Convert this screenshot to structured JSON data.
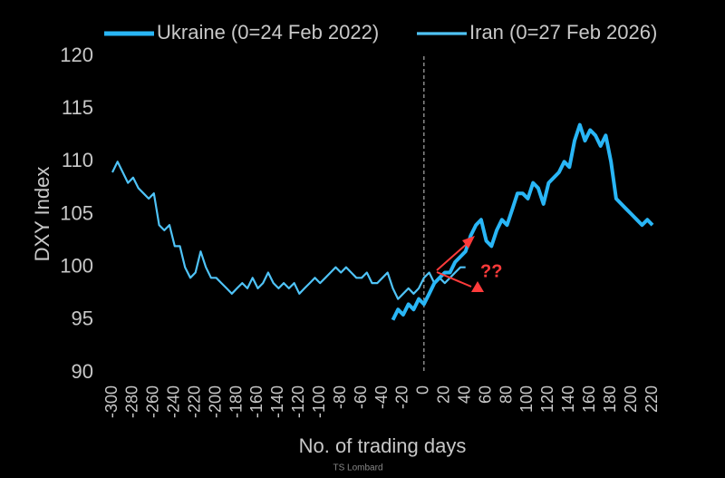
{
  "chart_data": {
    "type": "line",
    "xlabel": "No. of trading days",
    "ylabel": "DXY Index",
    "source": "TS Lombard",
    "annotation": "??",
    "vline": 0,
    "xlim": [
      -300,
      220
    ],
    "xticks": [
      -300,
      -280,
      -260,
      -240,
      -220,
      -200,
      -180,
      -160,
      -140,
      -120,
      -100,
      -80,
      -60,
      -40,
      -20,
      0,
      20,
      40,
      60,
      80,
      100,
      120,
      140,
      160,
      180,
      200,
      220
    ],
    "ylim": [
      90,
      120
    ],
    "yticks": [
      90,
      95,
      100,
      105,
      110,
      115,
      120
    ],
    "series": [
      {
        "name": "Ukraine (0=24 Feb 2022)",
        "color": "#29b6f6",
        "x": [
          -30,
          -25,
          -20,
          -15,
          -10,
          -5,
          0,
          5,
          10,
          15,
          20,
          25,
          30,
          35,
          40,
          45,
          50,
          55,
          60,
          65,
          70,
          75,
          80,
          85,
          90,
          95,
          100,
          105,
          110,
          115,
          120,
          125,
          130,
          135,
          140,
          145,
          150,
          155,
          160,
          165,
          170,
          175,
          180,
          185,
          190,
          195,
          200,
          205,
          210,
          215,
          220
        ],
        "values": [
          95,
          96,
          95.5,
          96.5,
          96,
          97,
          96.5,
          97.5,
          98.5,
          99,
          99.5,
          99.5,
          100.5,
          101,
          101.5,
          103,
          104,
          104.5,
          102.5,
          102,
          103.5,
          104.5,
          104,
          105.5,
          107,
          107,
          106.5,
          108,
          107.5,
          106,
          108,
          108.5,
          109,
          110,
          109.5,
          112,
          113.5,
          112,
          113,
          112.5,
          111.5,
          112.5,
          110,
          106.5,
          106,
          105.5,
          105,
          104.5,
          104,
          104.5,
          104
        ]
      },
      {
        "name": "Iran (0=27 Feb 2026)",
        "color": "#4fc3f7",
        "x": [
          -300,
          -295,
          -290,
          -285,
          -280,
          -275,
          -270,
          -265,
          -260,
          -255,
          -250,
          -245,
          -240,
          -235,
          -230,
          -225,
          -220,
          -215,
          -210,
          -205,
          -200,
          -195,
          -190,
          -185,
          -180,
          -175,
          -170,
          -165,
          -160,
          -155,
          -150,
          -145,
          -140,
          -135,
          -130,
          -125,
          -120,
          -115,
          -110,
          -105,
          -100,
          -95,
          -90,
          -85,
          -80,
          -75,
          -70,
          -65,
          -60,
          -55,
          -50,
          -45,
          -40,
          -35,
          -30,
          -25,
          -20,
          -15,
          -10,
          -5,
          0,
          5,
          10,
          15,
          20,
          25,
          30,
          35,
          40
        ],
        "values": [
          109,
          110,
          109,
          108,
          108.5,
          107.5,
          107,
          106.5,
          107,
          104,
          103.5,
          104,
          102,
          102,
          100,
          99,
          99.5,
          101.5,
          100,
          99,
          99,
          98.5,
          98,
          97.5,
          98,
          98.5,
          98,
          99,
          98,
          98.5,
          99.5,
          98.5,
          98,
          98.5,
          98,
          98.5,
          97.5,
          98,
          98.5,
          99,
          98.5,
          99,
          99.5,
          100,
          99.5,
          100,
          99.5,
          99,
          99,
          99.5,
          98.5,
          98.5,
          99,
          99.5,
          98,
          97,
          97.5,
          98,
          97.5,
          98,
          99,
          99.5,
          98.5,
          99,
          98.5,
          99,
          99.5,
          100,
          100
        ]
      }
    ]
  }
}
